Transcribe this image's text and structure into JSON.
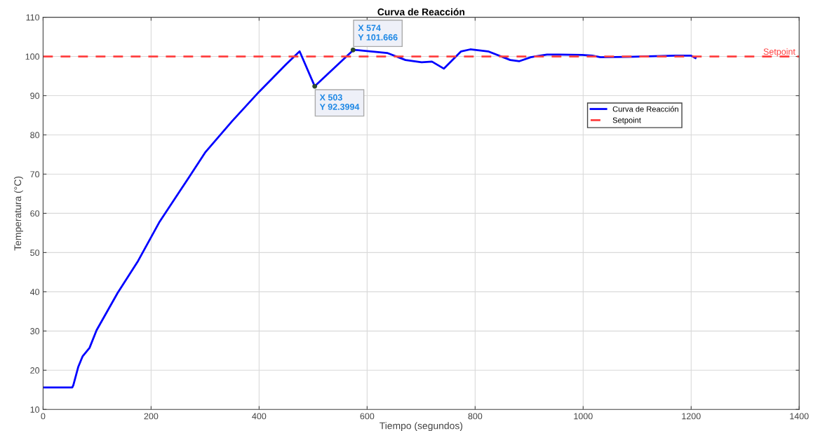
{
  "chart_data": {
    "type": "line",
    "title": "Curva de Reacción",
    "xlabel": "Tiempo (segundos)",
    "ylabel": "Temperatura (°C)",
    "xlim": [
      0,
      1400
    ],
    "xticks": [
      0,
      200,
      400,
      600,
      800,
      1000,
      1200,
      1400
    ],
    "ylim": [
      10,
      110
    ],
    "yticks": [
      10,
      20,
      30,
      40,
      50,
      60,
      70,
      80,
      90,
      100,
      110
    ],
    "grid": true,
    "legend": "right",
    "line_style": "solid",
    "marker": "none",
    "series": [
      {
        "name": "Curva de Reacción",
        "color": "#0000ff",
        "x": [
          0,
          54,
          56,
          65,
          73,
          86,
          99,
          138,
          176,
          215,
          275,
          300,
          350,
          400,
          450,
          475,
          503,
          575,
          637,
          671,
          701,
          720,
          742,
          774,
          791,
          824,
          865,
          882,
          903,
          933,
          955,
          998,
          1017,
          1032,
          1084,
          1170,
          1200,
          1208
        ],
        "values": [
          15.6,
          15.6,
          16.2,
          20.8,
          23.5,
          25.7,
          30.2,
          39.7,
          47.9,
          57.7,
          70.2,
          75.5,
          83.5,
          91.0,
          98.0,
          101.3,
          92.4,
          101.7,
          100.9,
          99.1,
          98.5,
          98.7,
          96.9,
          101.3,
          101.8,
          101.3,
          99.1,
          98.8,
          99.8,
          100.5,
          100.5,
          100.4,
          100.2,
          99.8,
          99.9,
          100.2,
          100.2,
          99.6
        ]
      }
    ],
    "ref_lines": [
      {
        "axis": "y",
        "value": 100,
        "label": "Setpoint",
        "color": "#ff4040",
        "line_style": "dashed"
      }
    ],
    "annotations": [
      {
        "text": "X 503\nY 92.3994",
        "x": 503,
        "y": 92.3994
      },
      {
        "text": "X 574\nY 101.666",
        "x": 574,
        "y": 101.666
      }
    ]
  }
}
